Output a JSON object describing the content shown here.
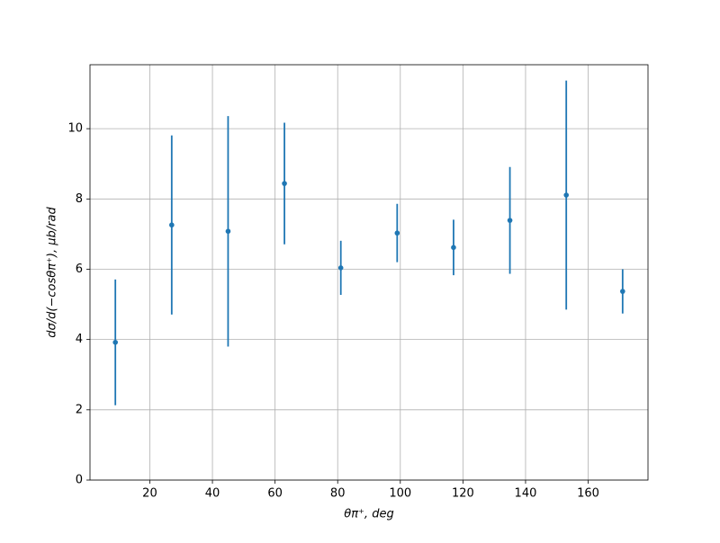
{
  "chart_data": {
    "type": "errorbar",
    "x_label": "θπ⁺, deg",
    "y_label": "dσ/d(−cosθπ⁺), μb/rad",
    "x": [
      9,
      27,
      45,
      63,
      81,
      99,
      117,
      135,
      153,
      171
    ],
    "series": [
      {
        "color": "#1f77b4",
        "values": [
          3.92,
          7.26,
          7.08,
          8.44,
          6.04,
          7.03,
          6.62,
          7.39,
          8.11,
          5.37
        ],
        "errors": [
          1.79,
          2.55,
          3.28,
          1.73,
          0.77,
          0.83,
          0.79,
          1.52,
          3.26,
          0.63
        ]
      }
    ],
    "xlim": [
      0.9,
      179.1
    ],
    "xticks": [
      20,
      40,
      60,
      80,
      100,
      120,
      140,
      160
    ],
    "ylim": [
      0,
      11.82
    ],
    "yticks": [
      0,
      2,
      4,
      6,
      8,
      10
    ],
    "grid": true
  }
}
